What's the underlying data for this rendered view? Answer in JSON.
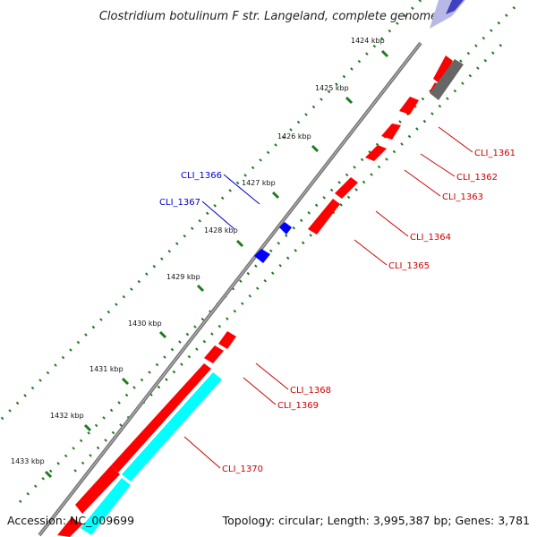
{
  "title": "Clostridium botulinum F str. Langeland, complete genome",
  "footer": {
    "accession": "Accession: NC_009699",
    "summary": "Topology: circular; Length: 3,995,387 bp; Genes: 3,781"
  },
  "scale_labels": [
    "1424 kbp",
    "1425 kbp",
    "1426 kbp",
    "1427 kbp",
    "1428 kbp",
    "1429 kbp",
    "1430 kbp",
    "1431 kbp",
    "1432 kbp",
    "1433 kbp"
  ],
  "colors": {
    "forward_gene": "#ff0000",
    "reverse_gene": "#0000ff",
    "rna_gene": "#00ffff",
    "other_gene": "#808080",
    "backbone": "#888888",
    "tick": "#1f7a1f"
  },
  "gene_labels": [
    {
      "name": "CLI_1361",
      "color": "#cc0000"
    },
    {
      "name": "CLI_1362",
      "color": "#cc0000"
    },
    {
      "name": "CLI_1363",
      "color": "#cc0000"
    },
    {
      "name": "CLI_1364",
      "color": "#cc0000"
    },
    {
      "name": "CLI_1365",
      "color": "#cc0000"
    },
    {
      "name": "CLI_1366",
      "color": "#0000cc"
    },
    {
      "name": "CLI_1367",
      "color": "#0000cc"
    },
    {
      "name": "CLI_1368",
      "color": "#cc0000"
    },
    {
      "name": "CLI_1369",
      "color": "#cc0000"
    },
    {
      "name": "CLI_1370",
      "color": "#cc0000"
    }
  ]
}
